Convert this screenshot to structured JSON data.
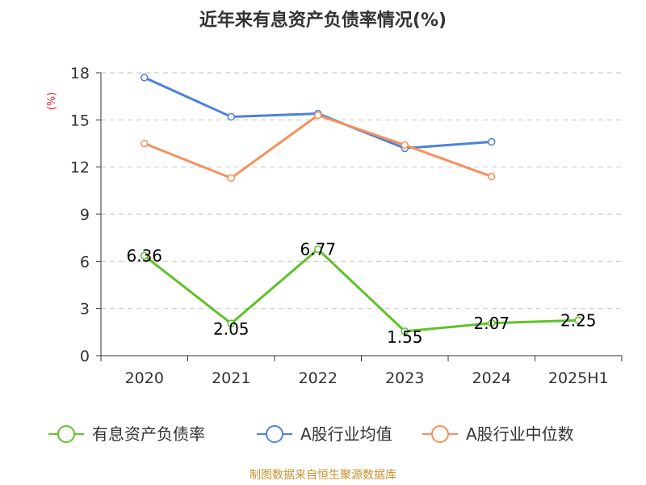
{
  "chart_data": {
    "type": "line",
    "title": "近年来有息资产负债率情况(%)",
    "ylabel": "(%)",
    "xlabel": "",
    "categories": [
      "2020",
      "2021",
      "2022",
      "2023",
      "2024",
      "2025H1"
    ],
    "ylim": [
      0,
      18
    ],
    "yticks": [
      0,
      3,
      6,
      9,
      12,
      15,
      18
    ],
    "grid": true,
    "legend_position": "bottom",
    "series": [
      {
        "name": "有息资产负债率",
        "color": "#5ec22a",
        "values": [
          6.36,
          2.05,
          6.77,
          1.55,
          2.07,
          2.25
        ],
        "data_labels": [
          "6.36",
          "2.05",
          "6.77",
          "1.55",
          "2.07",
          "2.25"
        ]
      },
      {
        "name": "A股行业均值",
        "color": "#4f81d9",
        "values": [
          17.7,
          15.2,
          15.4,
          13.2,
          13.6,
          null
        ]
      },
      {
        "name": "A股行业中位数",
        "color": "#f5915a",
        "values": [
          13.5,
          11.3,
          15.3,
          13.4,
          11.4,
          null
        ]
      }
    ]
  },
  "source_text": "制图数据来自恒生聚源数据库"
}
